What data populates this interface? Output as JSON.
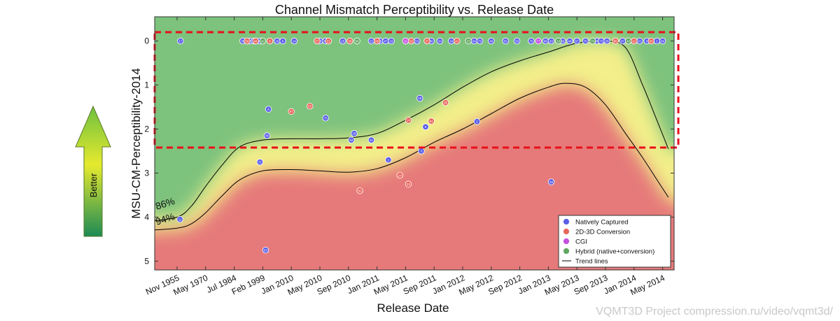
{
  "chart_data": {
    "type": "scatter",
    "title": "Channel Mismatch Perceptibility vs. Release Date",
    "xlabel": "Release Date",
    "ylabel": "MSU-CM-Perceptibility-2014",
    "x_tick_labels": [
      "Nov 1955",
      "May 1970",
      "Jul 1984",
      "Feb 1999",
      "Jan 2010",
      "May 2010",
      "Sep 2010",
      "Jan 2011",
      "May 2011",
      "Sep 2011",
      "Jan 2012",
      "May 2012",
      "Sep 2012",
      "Jan 2013",
      "May 2013",
      "Sep 2013",
      "Jan 2014",
      "May 2014"
    ],
    "y_ticks": [
      0,
      1,
      2,
      3,
      4,
      5
    ],
    "ylim": [
      -0.55,
      5.2
    ],
    "y_inverted": true,
    "grid": false,
    "legend_placement": "bottom-right",
    "legend": [
      {
        "label": "Natively Captured",
        "color": "#5a5ee8",
        "kind": "marker"
      },
      {
        "label": "2D-3D Conversion",
        "color": "#e8665a",
        "kind": "marker"
      },
      {
        "label": "CGI",
        "color": "#c64fe0",
        "kind": "marker"
      },
      {
        "label": "Hybrid (native+conversion)",
        "color": "#5fa65f",
        "kind": "marker"
      },
      {
        "label": "Trend lines",
        "color": "#000000",
        "kind": "line"
      }
    ],
    "trend_labels": [
      "86%",
      "94%"
    ],
    "trend_upper": [
      [
        0,
        4.0
      ],
      [
        0.5,
        3.75
      ],
      [
        1,
        3.3
      ],
      [
        1.6,
        2.8
      ],
      [
        2.2,
        2.4
      ],
      [
        3,
        2.25
      ],
      [
        4,
        2.22
      ],
      [
        5,
        2.22
      ],
      [
        6,
        2.2
      ],
      [
        7,
        2.1
      ],
      [
        8,
        1.8
      ],
      [
        9,
        1.45
      ],
      [
        10,
        1.05
      ],
      [
        11,
        0.7
      ],
      [
        12,
        0.45
      ],
      [
        13,
        0.25
      ],
      [
        14,
        0.05
      ],
      [
        15,
        0.0
      ],
      [
        15.7,
        0.15
      ],
      [
        16.3,
        1.0
      ],
      [
        16.8,
        1.8
      ],
      [
        17.2,
        2.45
      ]
    ],
    "trend_lower": [
      [
        0,
        4.25
      ],
      [
        0.5,
        4.15
      ],
      [
        1,
        3.9
      ],
      [
        1.6,
        3.5
      ],
      [
        2.2,
        3.15
      ],
      [
        3,
        2.95
      ],
      [
        4,
        2.92
      ],
      [
        5,
        2.95
      ],
      [
        6,
        2.98
      ],
      [
        7,
        2.9
      ],
      [
        8,
        2.65
      ],
      [
        9,
        2.3
      ],
      [
        10,
        2.0
      ],
      [
        11,
        1.65
      ],
      [
        12,
        1.3
      ],
      [
        13,
        1.05
      ],
      [
        13.6,
        0.96
      ],
      [
        14.3,
        1.05
      ],
      [
        15,
        1.45
      ],
      [
        15.7,
        2.1
      ],
      [
        16.3,
        2.65
      ],
      [
        16.8,
        3.15
      ],
      [
        17.2,
        3.55
      ]
    ],
    "series": [
      {
        "name": "Natively Captured",
        "color": "#5a5ee8",
        "points": [
          {
            "x": 0.12,
            "y": 0.0,
            "label": "17"
          },
          {
            "x": 2.3,
            "y": 0.0,
            "label": "38"
          },
          {
            "x": 2.55,
            "y": 0.0,
            "label": "5"
          },
          {
            "x": 2.7,
            "y": 0.0,
            "label": "16"
          },
          {
            "x": 2.9,
            "y": 0.0,
            "label": "51"
          },
          {
            "x": 3.5,
            "y": 0.0,
            "label": "26"
          },
          {
            "x": 3.7,
            "y": 0.0,
            "label": "8"
          },
          {
            "x": 4.1,
            "y": 0.0,
            "label": "14"
          },
          {
            "x": 5.0,
            "y": 0.0,
            "label": "72"
          },
          {
            "x": 5.2,
            "y": 0.0,
            "label": "64"
          },
          {
            "x": 5.8,
            "y": 0.0,
            "label": "15"
          },
          {
            "x": 6.8,
            "y": 0.0,
            "label": "22"
          },
          {
            "x": 7.1,
            "y": 0.0,
            "label": "39"
          },
          {
            "x": 7.3,
            "y": 0.0,
            "label": "47"
          },
          {
            "x": 7.5,
            "y": 0.0,
            "label": "19"
          },
          {
            "x": 8.4,
            "y": 0.0,
            "label": "53"
          },
          {
            "x": 8.9,
            "y": 0.0,
            "label": "40"
          },
          {
            "x": 9.2,
            "y": 0.0,
            "label": "34"
          },
          {
            "x": 9.6,
            "y": 0.0,
            "label": "18"
          },
          {
            "x": 10.4,
            "y": 0.0,
            "label": "54"
          },
          {
            "x": 10.6,
            "y": 0.0,
            "label": "79"
          },
          {
            "x": 11.0,
            "y": 0.0,
            "label": "49"
          },
          {
            "x": 11.5,
            "y": 0.0,
            "label": "55"
          },
          {
            "x": 11.9,
            "y": 0.0,
            "label": "59"
          },
          {
            "x": 12.4,
            "y": 0.0,
            "label": "76"
          },
          {
            "x": 12.9,
            "y": 0.0,
            "label": "68"
          },
          {
            "x": 13.1,
            "y": 0.0,
            "label": "20"
          },
          {
            "x": 13.5,
            "y": 0.0,
            "label": "69"
          },
          {
            "x": 13.75,
            "y": 0.0,
            "label": "46"
          },
          {
            "x": 14.0,
            "y": 0.0,
            "label": "67"
          },
          {
            "x": 14.3,
            "y": 0.0,
            "label": "70"
          },
          {
            "x": 14.7,
            "y": 0.0,
            "label": "48"
          },
          {
            "x": 14.85,
            "y": 0.0,
            "label": "73"
          },
          {
            "x": 15.05,
            "y": 0.0,
            "label": "25"
          },
          {
            "x": 15.6,
            "y": 0.0,
            "label": "37"
          },
          {
            "x": 16.2,
            "y": 0.0,
            "label": "61"
          },
          {
            "x": 16.45,
            "y": 0.0,
            "label": "5"
          },
          {
            "x": 16.8,
            "y": 0.0,
            "label": "2"
          },
          {
            "x": 17.0,
            "y": 0.0,
            "label": "60"
          },
          {
            "x": 3.2,
            "y": 1.55,
            "label": "6"
          },
          {
            "x": 3.15,
            "y": 2.15,
            "label": "36"
          },
          {
            "x": 2.9,
            "y": 2.75,
            "label": "71"
          },
          {
            "x": 3.1,
            "y": 4.75,
            "label": "63"
          },
          {
            "x": 0.1,
            "y": 4.05,
            "label": "11"
          },
          {
            "x": 5.2,
            "y": 1.75,
            "label": "75"
          },
          {
            "x": 6.2,
            "y": 2.1,
            "label": "28"
          },
          {
            "x": 6.1,
            "y": 2.25,
            "label": "62"
          },
          {
            "x": 6.8,
            "y": 2.25,
            "label": "21"
          },
          {
            "x": 7.4,
            "y": 2.7,
            "label": "1"
          },
          {
            "x": 8.5,
            "y": 1.3,
            "label": "45"
          },
          {
            "x": 8.7,
            "y": 1.95,
            "label": "9"
          },
          {
            "x": 8.55,
            "y": 2.5,
            "label": "3"
          },
          {
            "x": 10.5,
            "y": 1.83,
            "label": "2"
          },
          {
            "x": 13.1,
            "y": 3.2,
            "label": "29"
          }
        ]
      },
      {
        "name": "2D-3D Conversion",
        "color": "#e8665a",
        "points": [
          {
            "x": 2.45,
            "y": 0.0,
            "label": "58"
          },
          {
            "x": 2.75,
            "y": 0.0,
            "label": "44"
          },
          {
            "x": 3.25,
            "y": 0.0,
            "label": "6"
          },
          {
            "x": 4.9,
            "y": 0.0,
            "label": "57"
          },
          {
            "x": 5.3,
            "y": 0.0,
            "label": "31"
          },
          {
            "x": 6.05,
            "y": 0.0,
            "label": "30"
          },
          {
            "x": 7.0,
            "y": 0.0,
            "label": "66"
          },
          {
            "x": 8.2,
            "y": 0.0,
            "label": "52"
          },
          {
            "x": 8.75,
            "y": 0.0,
            "label": "27"
          },
          {
            "x": 9.8,
            "y": 0.0,
            "label": "41"
          },
          {
            "x": 15.35,
            "y": 0.0,
            "label": "80"
          },
          {
            "x": 16.0,
            "y": 0.0,
            "label": "12"
          },
          {
            "x": 16.6,
            "y": 0.0,
            "label": "58"
          },
          {
            "x": 4.0,
            "y": 1.6,
            "label": "57"
          },
          {
            "x": 4.65,
            "y": 1.48,
            "label": "65"
          },
          {
            "x": 6.4,
            "y": 3.4,
            "label": "50"
          },
          {
            "x": 7.8,
            "y": 3.05,
            "label": "24"
          },
          {
            "x": 8.1,
            "y": 3.25,
            "label": "33"
          },
          {
            "x": 8.1,
            "y": 1.8,
            "label": "14"
          },
          {
            "x": 8.9,
            "y": 1.82,
            "label": "81"
          },
          {
            "x": 9.4,
            "y": 1.4,
            "label": "35"
          }
        ]
      },
      {
        "name": "CGI",
        "color": "#c64fe0",
        "points": [
          {
            "x": 8.0,
            "y": 0.0,
            "label": "10"
          },
          {
            "x": 12.65,
            "y": 0.0,
            "label": "77"
          }
        ]
      },
      {
        "name": "Hybrid (native+conversion)",
        "color": "#5fa65f",
        "points": [
          {
            "x": 3.0,
            "y": 0.0,
            "label": "42"
          },
          {
            "x": 6.3,
            "y": 0.0,
            "label": "56"
          },
          {
            "x": 10.2,
            "y": 0.0,
            "label": "23"
          },
          {
            "x": 13.35,
            "y": 0.0,
            "label": "13"
          },
          {
            "x": 14.55,
            "y": 0.0,
            "label": "74"
          },
          {
            "x": 15.8,
            "y": 0.0,
            "label": "43"
          }
        ]
      }
    ],
    "highlight_box": {
      "x0": 0.0,
      "x1": 17.55,
      "y0": -0.2,
      "y1": 2.42,
      "color": "#e8101a",
      "style": "dashed"
    }
  },
  "sidebar": {
    "better_label": "Better"
  },
  "watermark": "VQMT3D Project compression.ru/video/vqmt3d/"
}
